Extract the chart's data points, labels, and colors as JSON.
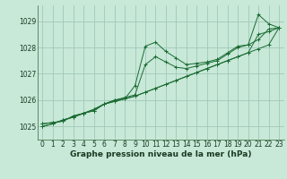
{
  "bg_color": "#c8e8d8",
  "grid_color": "#a0c8b8",
  "line_color": "#1a6b32",
  "title": "Graphe pression niveau de la mer (hPa)",
  "title_fontsize": 6.5,
  "tick_fontsize": 5.5,
  "ylim": [
    1024.5,
    1029.6
  ],
  "xlim": [
    -0.5,
    23.5
  ],
  "yticks": [
    1025,
    1026,
    1027,
    1028,
    1029
  ],
  "xticks": [
    0,
    1,
    2,
    3,
    4,
    5,
    6,
    7,
    8,
    9,
    10,
    11,
    12,
    13,
    14,
    15,
    16,
    17,
    18,
    19,
    20,
    21,
    22,
    23
  ],
  "series": [
    [
      1025.1,
      1025.15,
      1025.2,
      1025.4,
      1025.5,
      1025.65,
      1025.85,
      1026.0,
      1026.05,
      1026.55,
      1028.05,
      1028.2,
      1027.85,
      1027.6,
      1027.35,
      1027.4,
      1027.45,
      1027.55,
      1027.8,
      1028.05,
      1028.1,
      1029.25,
      1028.9,
      1028.75
    ],
    [
      1025.1,
      1025.15,
      1025.2,
      1025.4,
      1025.5,
      1025.65,
      1025.85,
      1026.0,
      1026.1,
      1026.2,
      1027.35,
      1027.65,
      1027.45,
      1027.25,
      1027.2,
      1027.3,
      1027.4,
      1027.5,
      1027.75,
      1028.0,
      1028.1,
      1028.3,
      1028.7,
      1028.75
    ],
    [
      1025.0,
      1025.1,
      1025.25,
      1025.35,
      1025.5,
      1025.6,
      1025.85,
      1025.95,
      1026.05,
      1026.15,
      1026.3,
      1026.45,
      1026.6,
      1026.75,
      1026.9,
      1027.05,
      1027.2,
      1027.35,
      1027.5,
      1027.65,
      1027.8,
      1027.95,
      1028.1,
      1028.75
    ],
    [
      1025.0,
      1025.1,
      1025.25,
      1025.35,
      1025.5,
      1025.6,
      1025.85,
      1025.95,
      1026.05,
      1026.15,
      1026.3,
      1026.45,
      1026.6,
      1026.75,
      1026.9,
      1027.05,
      1027.2,
      1027.35,
      1027.5,
      1027.65,
      1027.8,
      1028.5,
      1028.6,
      1028.75
    ]
  ]
}
